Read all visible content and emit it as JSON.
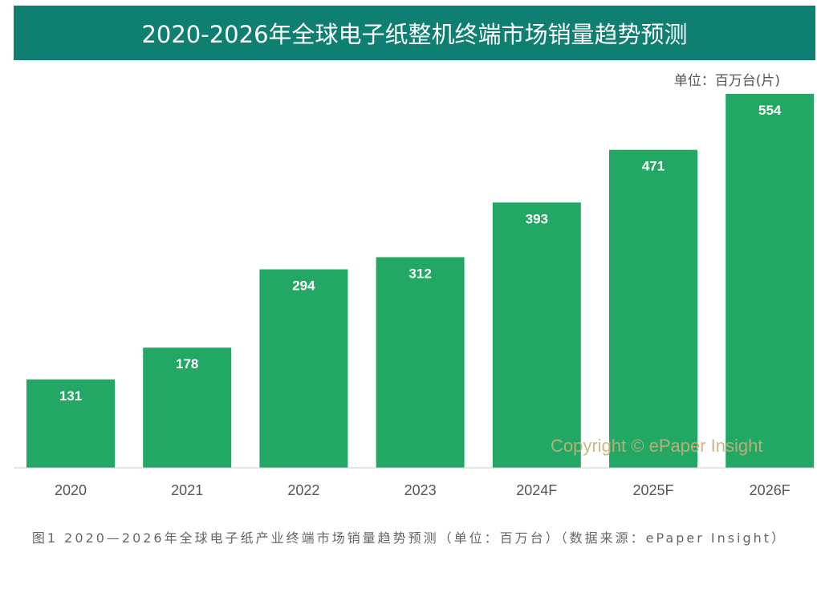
{
  "chart_data": {
    "type": "bar",
    "title": "2020-2026年全球电子纸整机终端市场销量趋势预测",
    "unit": "单位：百万台(片)",
    "categories": [
      "2020",
      "2021",
      "2022",
      "2023",
      "2024F",
      "2025F",
      "2026F"
    ],
    "values": [
      131,
      178,
      294,
      312,
      393,
      471,
      554
    ],
    "ylim": [
      0,
      580
    ],
    "xlabel": "",
    "ylabel": "",
    "bar_color": "#22a864",
    "title_bg": "#0e7f71"
  },
  "watermark": "Copyright © ePaper Insight",
  "caption": "图1 2020—2026年全球电子纸产业终端市场销量趋势预测（单位：百万台）（数据来源：ePaper Insight）"
}
